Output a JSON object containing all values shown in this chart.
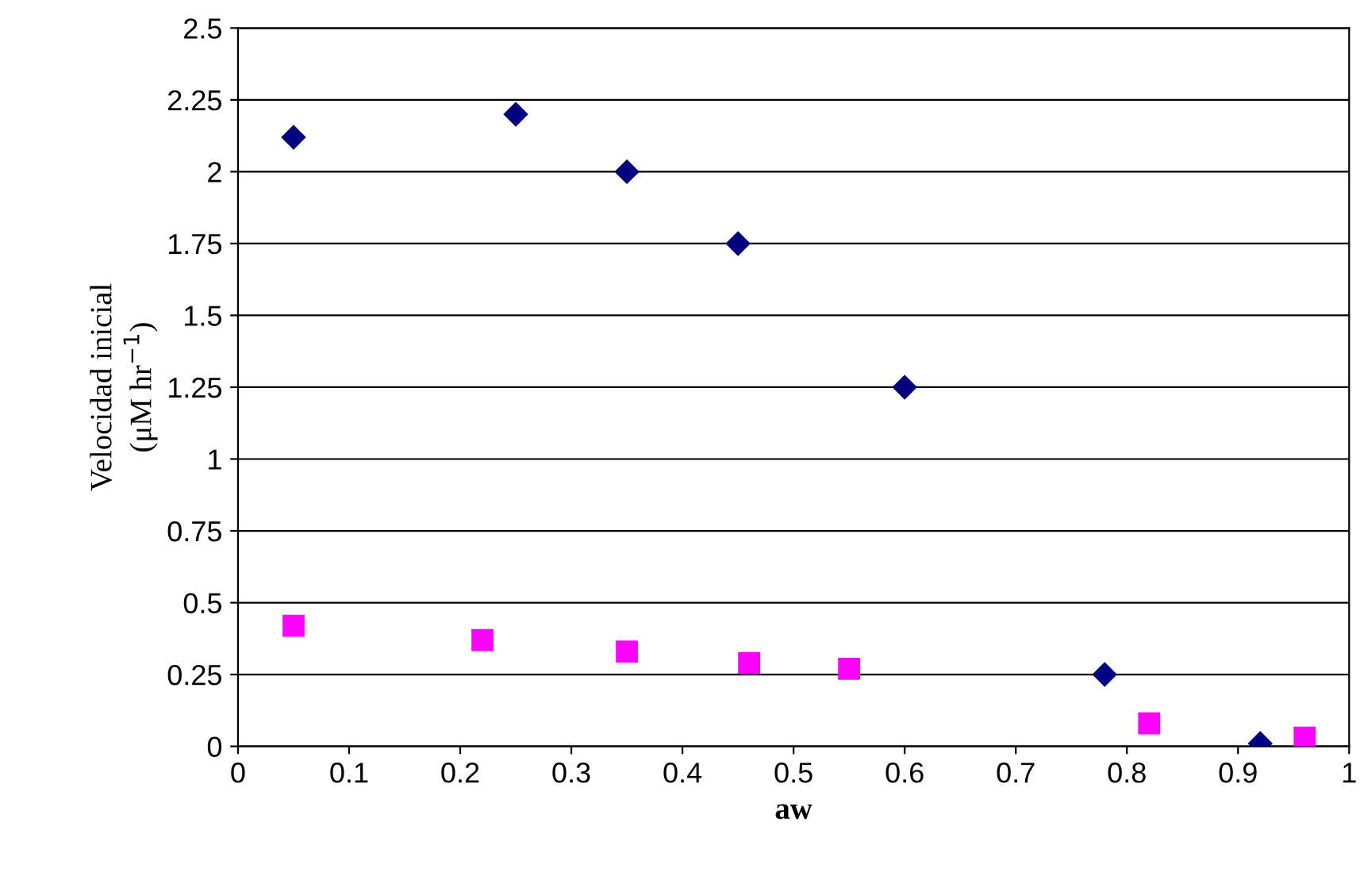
{
  "chart_data": {
    "type": "scatter",
    "xlabel": "aw",
    "ylabel": "Velocidad inicial\n(μM hr$^{−1}$)",
    "xlim": [
      0,
      1
    ],
    "xticks": [
      0,
      0.1,
      0.2,
      0.3,
      0.4,
      0.5,
      0.6,
      0.7,
      0.8,
      0.9,
      1
    ],
    "ylim": [
      0,
      2.5
    ],
    "yticks": [
      0,
      0.25,
      0.5,
      0.75,
      1,
      1.25,
      1.5,
      1.75,
      2,
      2.25,
      2.5
    ],
    "grid": "y",
    "series": [
      {
        "color": "#000080",
        "marker": "diamond",
        "x": [
          0.05,
          0.25,
          0.35,
          0.45,
          0.6,
          0.78,
          0.92
        ],
        "values": [
          2.12,
          2.2,
          2.0,
          1.75,
          1.25,
          0.25,
          0.01
        ]
      },
      {
        "color": "#ff00ff",
        "marker": "square",
        "x": [
          0.05,
          0.22,
          0.35,
          0.46,
          0.55,
          0.82,
          0.96
        ],
        "values": [
          0.42,
          0.37,
          0.33,
          0.29,
          0.27,
          0.08,
          0.03
        ]
      }
    ]
  }
}
